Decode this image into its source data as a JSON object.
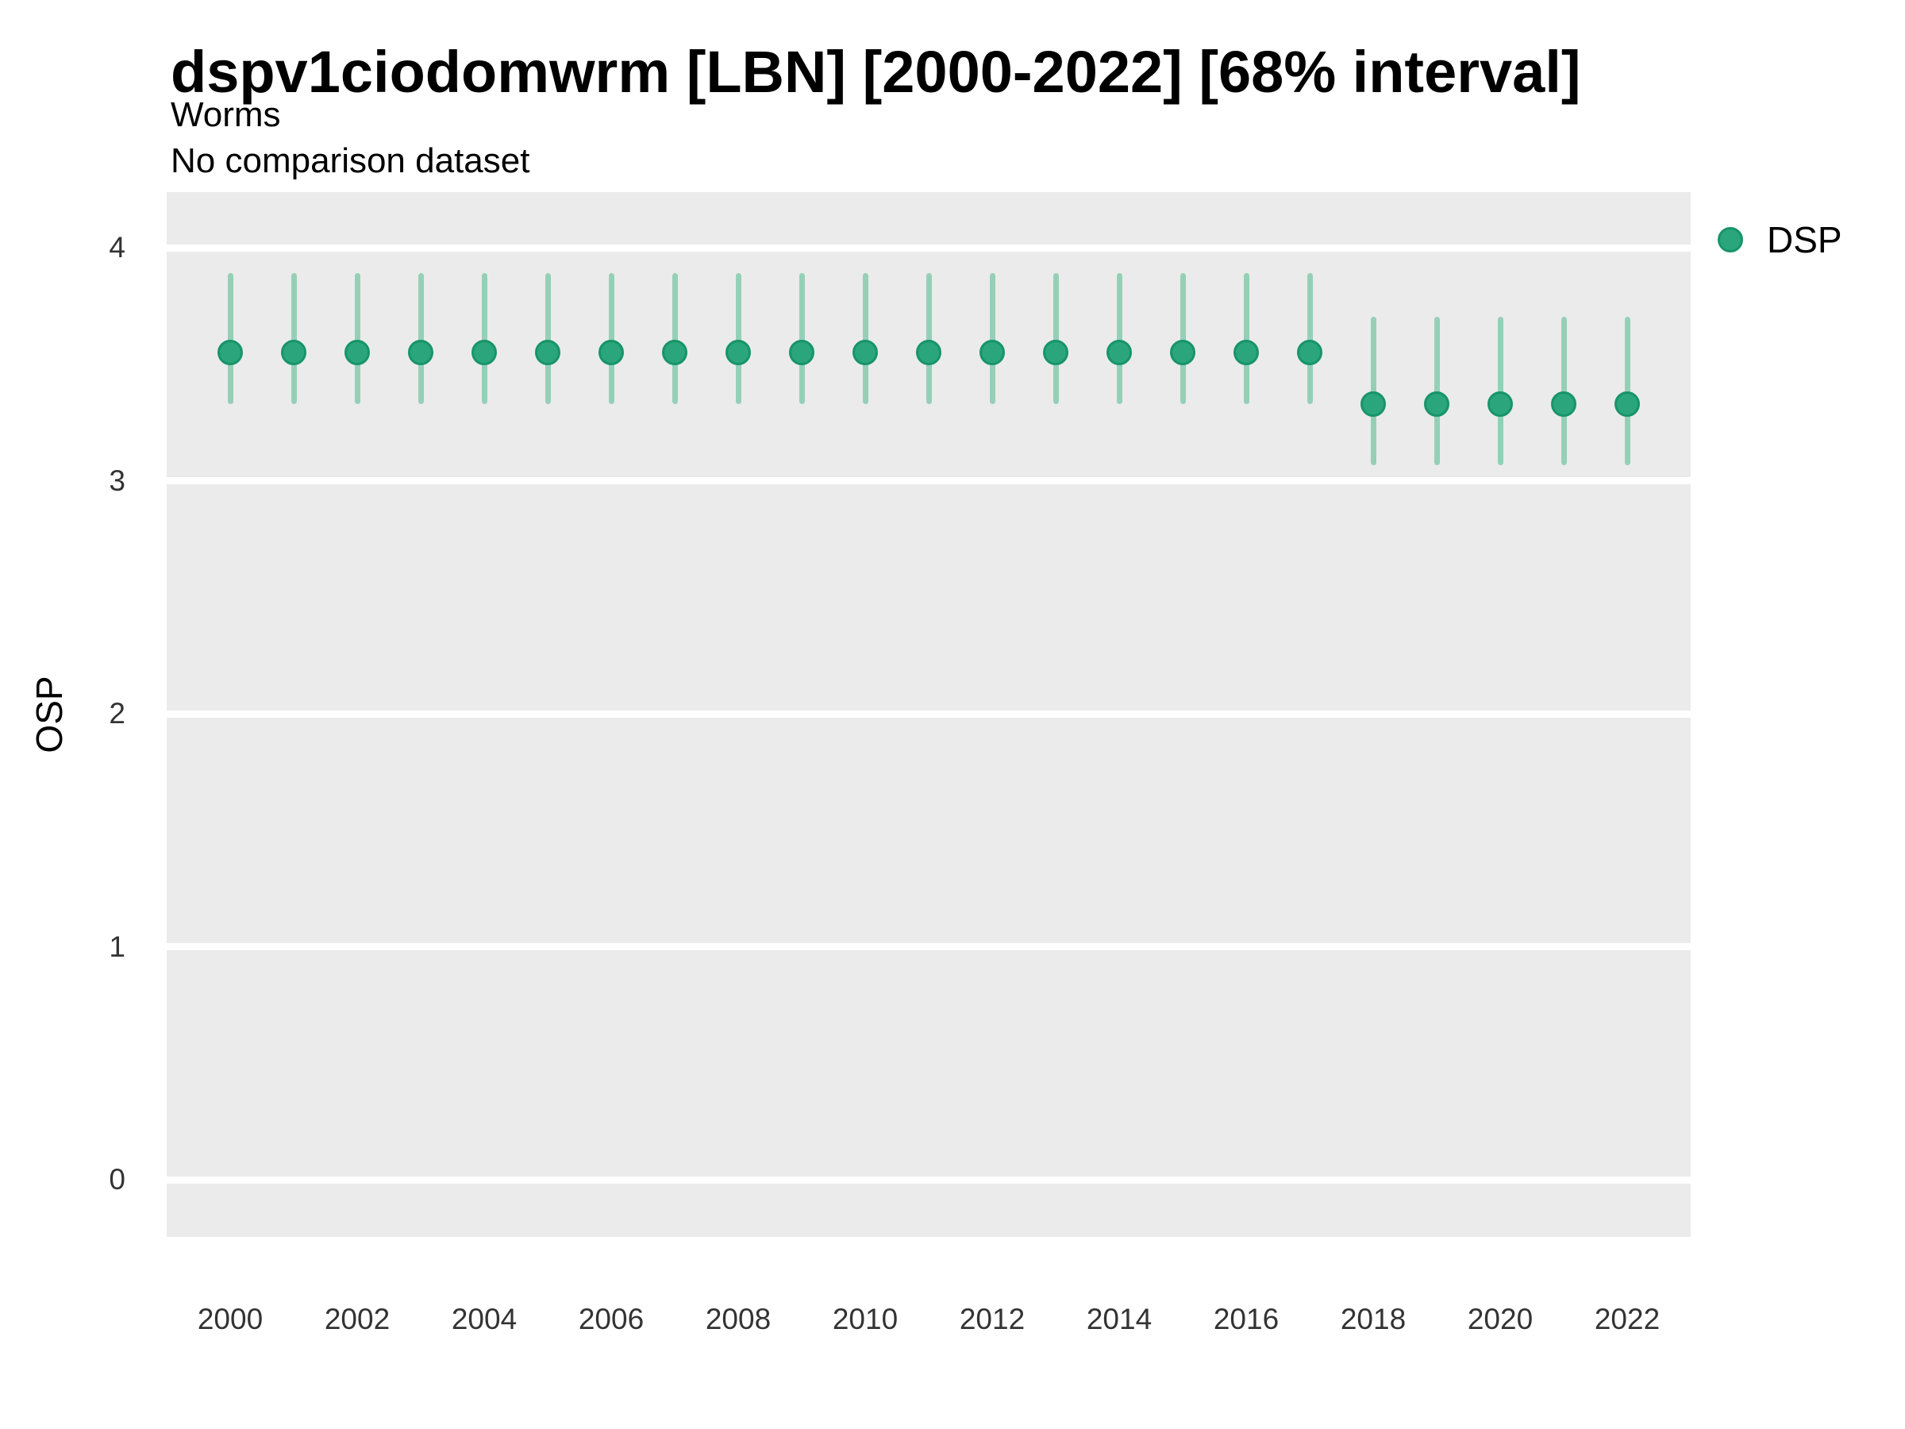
{
  "header": {
    "title": "dspv1ciodomwrm [LBN] [2000-2022] [68% interval]",
    "subtitle": "Worms",
    "note": "No comparison dataset"
  },
  "legend": {
    "label": "DSP",
    "position": "right"
  },
  "colors": {
    "point_fill": "#2BA67C",
    "point_stroke": "#17946A",
    "interval_line": "#95D0B6",
    "panel_background": "#EBEBEB",
    "gridline": "#FFFFFF",
    "tick_text": "#333333",
    "title_text": "#000000"
  },
  "chart_data": {
    "type": "pointrange",
    "title": "dspv1ciodomwrm [LBN] [2000-2022] [68% interval]",
    "subtitle": "Worms",
    "note": "No comparison dataset",
    "xlabel": "",
    "ylabel": "OSP",
    "ylim": [
      -0.25,
      4.24
    ],
    "yticks": [
      0,
      1,
      2,
      3,
      4
    ],
    "xticks": [
      2000,
      2002,
      2004,
      2006,
      2008,
      2010,
      2012,
      2014,
      2016,
      2018,
      2020,
      2022
    ],
    "grid": "major-horizontal-white-on-grey",
    "legend_position": "right",
    "interval": "68%",
    "x": [
      2000,
      2001,
      2002,
      2003,
      2004,
      2005,
      2006,
      2007,
      2008,
      2009,
      2010,
      2011,
      2012,
      2013,
      2014,
      2015,
      2016,
      2017,
      2018,
      2019,
      2020,
      2021,
      2022
    ],
    "series": [
      {
        "name": "DSP",
        "values": [
          3.55,
          3.55,
          3.55,
          3.55,
          3.55,
          3.55,
          3.55,
          3.55,
          3.55,
          3.55,
          3.55,
          3.55,
          3.55,
          3.55,
          3.55,
          3.55,
          3.55,
          3.55,
          3.33,
          3.33,
          3.33,
          3.33,
          3.33
        ],
        "lower": [
          3.34,
          3.34,
          3.34,
          3.34,
          3.34,
          3.34,
          3.34,
          3.34,
          3.34,
          3.34,
          3.34,
          3.34,
          3.34,
          3.34,
          3.34,
          3.34,
          3.34,
          3.34,
          3.08,
          3.08,
          3.08,
          3.08,
          3.08
        ],
        "upper": [
          3.88,
          3.88,
          3.88,
          3.88,
          3.88,
          3.88,
          3.88,
          3.88,
          3.88,
          3.88,
          3.88,
          3.88,
          3.88,
          3.88,
          3.88,
          3.88,
          3.88,
          3.88,
          3.69,
          3.69,
          3.69,
          3.69,
          3.69
        ]
      }
    ]
  }
}
